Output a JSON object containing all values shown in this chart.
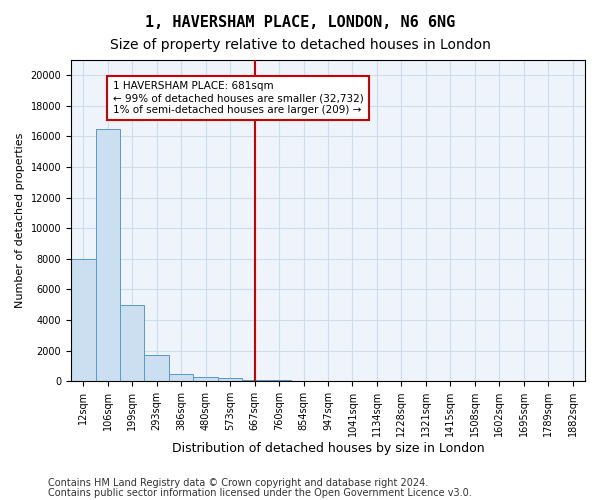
{
  "title1": "1, HAVERSHAM PLACE, LONDON, N6 6NG",
  "title2": "Size of property relative to detached houses in London",
  "xlabel": "Distribution of detached houses by size in London",
  "ylabel": "Number of detached properties",
  "bin_labels": [
    "12sqm",
    "106sqm",
    "199sqm",
    "293sqm",
    "386sqm",
    "480sqm",
    "573sqm",
    "667sqm",
    "760sqm",
    "854sqm",
    "947sqm",
    "1041sqm",
    "1134sqm",
    "1228sqm",
    "1321sqm",
    "1415sqm",
    "1508sqm",
    "1602sqm",
    "1695sqm",
    "1789sqm",
    "1882sqm"
  ],
  "bar_values": [
    8000,
    16500,
    5000,
    1700,
    500,
    300,
    200,
    100,
    80,
    0,
    0,
    0,
    0,
    0,
    0,
    0,
    0,
    0,
    0,
    0,
    0
  ],
  "bar_color": "#ccdff0",
  "bar_edge_color": "#5599cc",
  "vline_x_index": 7,
  "vline_color": "#cc0000",
  "annotation_text": "1 HAVERSHAM PLACE: 681sqm\n← 99% of detached houses are smaller (32,732)\n1% of semi-detached houses are larger (209) →",
  "annotation_box_color": "white",
  "annotation_box_edge_color": "#cc0000",
  "ylim": [
    0,
    21000
  ],
  "yticks": [
    0,
    2000,
    4000,
    6000,
    8000,
    10000,
    12000,
    14000,
    16000,
    18000,
    20000
  ],
  "grid_color": "#ccddee",
  "background_color": "#eef4fa",
  "footer_line1": "Contains HM Land Registry data © Crown copyright and database right 2024.",
  "footer_line2": "Contains public sector information licensed under the Open Government Licence v3.0.",
  "title1_fontsize": 11,
  "title2_fontsize": 10,
  "xlabel_fontsize": 9,
  "ylabel_fontsize": 8,
  "tick_fontsize": 7,
  "footer_fontsize": 7
}
